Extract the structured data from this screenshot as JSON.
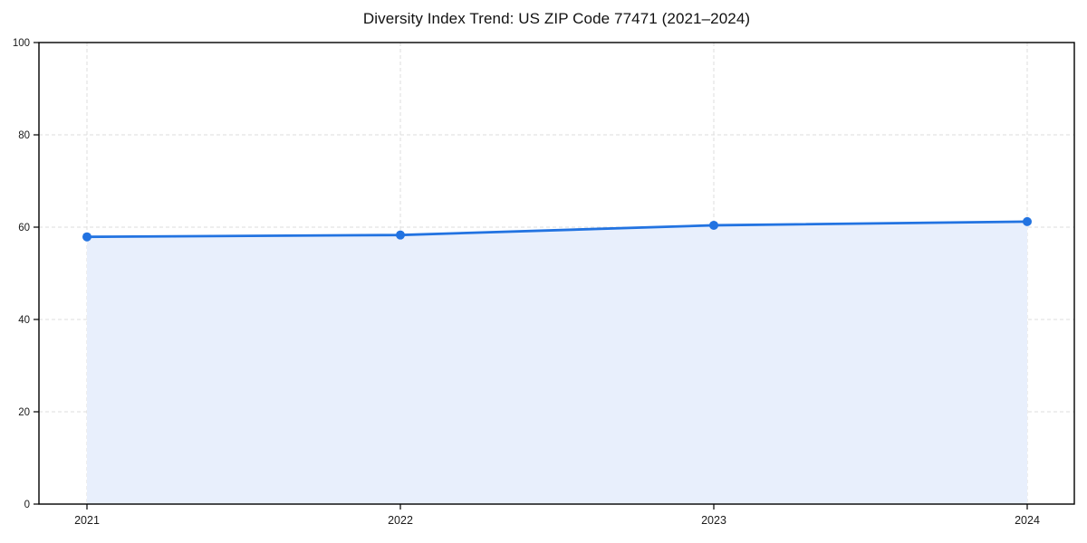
{
  "chart_data": {
    "type": "area",
    "title": "Diversity Index Trend: US ZIP Code 77471 (2021–2024)",
    "x_tick_labels": [
      "2021",
      "2022",
      "2023",
      "2024"
    ],
    "x": [
      2021,
      2022,
      2023,
      2024
    ],
    "values": [
      57.9,
      58.3,
      60.4,
      61.2
    ],
    "xlabel": "",
    "ylabel": "",
    "ylim": [
      0,
      100
    ],
    "y_ticks": [
      0,
      20,
      40,
      60,
      80,
      100
    ],
    "grid": "dashed",
    "legend": "none",
    "colors": {
      "line": "#2273e1",
      "marker": "#2273e1",
      "fill": "#e8effc",
      "grid": "#dcdcdc",
      "axis": "#000000",
      "tick_text": "#1a1a1a",
      "title_text": "#111111",
      "background": "#ffffff"
    }
  }
}
